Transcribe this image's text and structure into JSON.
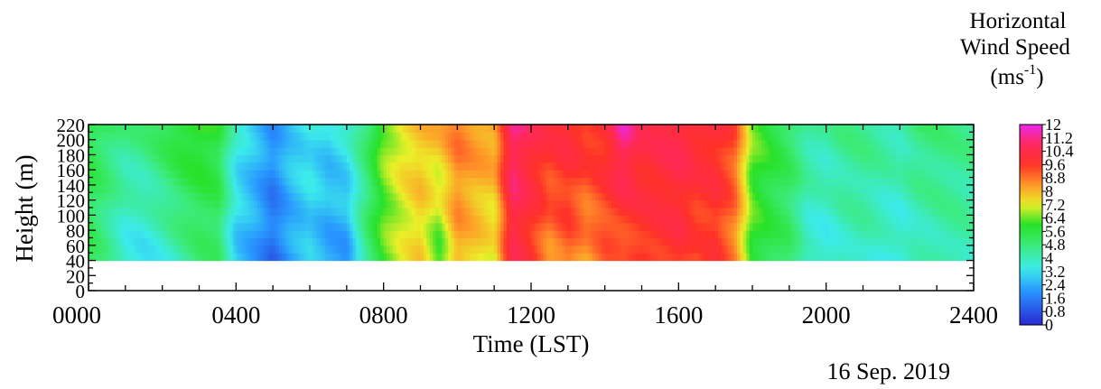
{
  "chart_data": {
    "type": "heatmap",
    "title": "",
    "xlabel": "Time (LST)",
    "ylabel": "Height (m)",
    "xlim": [
      0,
      24
    ],
    "ylim": [
      0,
      220
    ],
    "x_tick_labels": [
      "0000",
      "0400",
      "0800",
      "1200",
      "1600",
      "2000",
      "2400"
    ],
    "y_tick_labels": [
      "0",
      "20",
      "40",
      "60",
      "80",
      "100",
      "120",
      "140",
      "160",
      "180",
      "200",
      "220"
    ],
    "colorbar": {
      "title_line1": "Horizontal",
      "title_line2": "Wind Speed",
      "unit_base": "(ms",
      "unit_exp": "-1",
      "unit_close": ")",
      "range": [
        0,
        12
      ],
      "tick_labels": [
        "0",
        "0.8",
        "1.6",
        "2.4",
        "3.2",
        "4",
        "4.8",
        "5.6",
        "6.4",
        "7.2",
        "8",
        "8.8",
        "9.6",
        "10.4",
        "11.2",
        "12"
      ]
    },
    "data_height_range": [
      40,
      220
    ],
    "time_hours": [
      0,
      0.5,
      1,
      1.5,
      2,
      2.5,
      3,
      3.5,
      4,
      4.5,
      5,
      5.5,
      6,
      6.5,
      7,
      7.5,
      8,
      8.5,
      9,
      9.5,
      10,
      10.5,
      11,
      11.5,
      12,
      12.5,
      13,
      13.5,
      14,
      14.5,
      15,
      15.5,
      16,
      16.5,
      17,
      17.5,
      18,
      18.5,
      19,
      19.5,
      20,
      20.5,
      21,
      21.5,
      22,
      22.5,
      23,
      23.5,
      24
    ],
    "speed_low_ms": [
      5.2,
      4.4,
      3.4,
      3.2,
      3.6,
      4.2,
      4.8,
      5.0,
      2.8,
      2.2,
      1.2,
      2.2,
      2.8,
      2.2,
      2.0,
      4.6,
      6.2,
      7.0,
      7.6,
      6.0,
      8.2,
      7.6,
      7.0,
      10.4,
      9.6,
      8.4,
      9.0,
      8.2,
      9.0,
      8.8,
      9.6,
      9.6,
      9.8,
      9.2,
      9.6,
      8.6,
      6.0,
      5.4,
      5.0,
      3.6,
      3.4,
      3.8,
      4.0,
      3.6,
      3.4,
      3.8,
      4.0,
      4.2,
      4.0
    ],
    "speed_high_ms": [
      5.6,
      5.0,
      4.6,
      4.8,
      5.4,
      6.0,
      6.2,
      5.8,
      3.6,
      2.8,
      2.0,
      3.0,
      3.4,
      3.0,
      3.6,
      4.8,
      6.6,
      7.4,
      7.8,
      8.0,
      8.8,
      8.4,
      8.4,
      11.2,
      10.4,
      10.0,
      10.2,
      9.8,
      10.0,
      11.6,
      10.2,
      10.4,
      10.6,
      10.2,
      10.0,
      9.4,
      6.4,
      5.8,
      5.2,
      4.4,
      4.2,
      4.6,
      4.6,
      4.4,
      4.2,
      4.8,
      4.8,
      4.6,
      4.6
    ],
    "annotation": "16 Sep. 2019"
  }
}
